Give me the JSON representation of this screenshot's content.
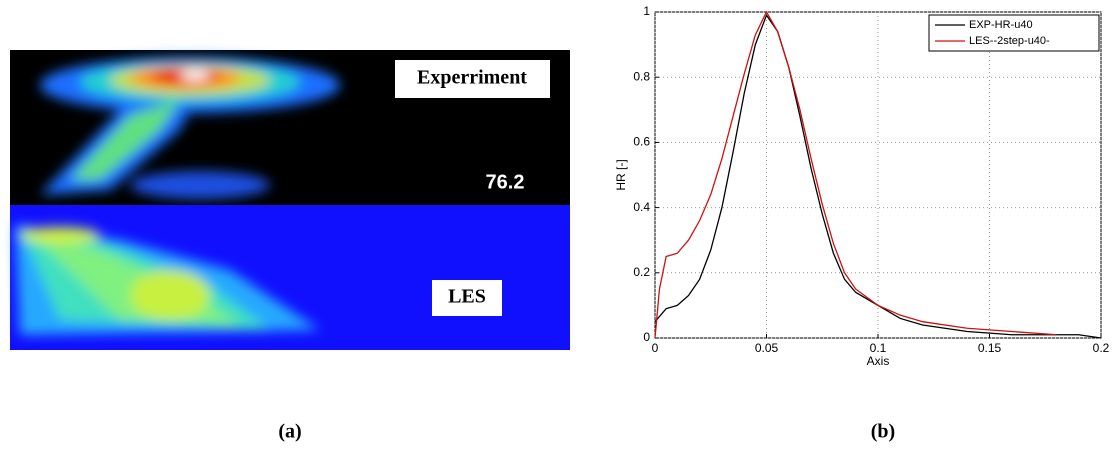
{
  "panel_a": {
    "labels": [
      "Experriment",
      "76.2",
      "LES"
    ],
    "caption": "(a)"
  },
  "chart_data": {
    "type": "line",
    "caption": "(b)",
    "xlabel": "Axis",
    "ylabel": "HR [-]",
    "xlim": [
      0,
      0.2
    ],
    "xticks": [
      0,
      0.05,
      0.1,
      0.15,
      0.2
    ],
    "ylim": [
      0,
      1
    ],
    "yticks": [
      0,
      0.2,
      0.4,
      0.6,
      0.8,
      1
    ],
    "grid": true,
    "legend": "upper right",
    "series": [
      {
        "name": "EXP-HR-u40",
        "color": "#000000",
        "x": [
          0,
          0.005,
          0.01,
          0.015,
          0.02,
          0.025,
          0.03,
          0.035,
          0.04,
          0.045,
          0.05,
          0.055,
          0.06,
          0.065,
          0.07,
          0.075,
          0.08,
          0.085,
          0.09,
          0.1,
          0.11,
          0.12,
          0.14,
          0.16,
          0.18,
          0.19,
          0.2
        ],
        "values": [
          0.05,
          0.09,
          0.1,
          0.13,
          0.18,
          0.27,
          0.4,
          0.57,
          0.75,
          0.9,
          0.99,
          0.94,
          0.83,
          0.68,
          0.52,
          0.38,
          0.26,
          0.18,
          0.14,
          0.1,
          0.06,
          0.04,
          0.02,
          0.01,
          0.01,
          0.01,
          0
        ]
      },
      {
        "name": "LES--2step-u40-",
        "color": "#d01010",
        "x": [
          0,
          0.002,
          0.005,
          0.01,
          0.015,
          0.02,
          0.025,
          0.03,
          0.035,
          0.04,
          0.045,
          0.05,
          0.055,
          0.06,
          0.065,
          0.07,
          0.075,
          0.08,
          0.085,
          0.09,
          0.1,
          0.11,
          0.12,
          0.14,
          0.16,
          0.18
        ],
        "values": [
          0,
          0.15,
          0.25,
          0.26,
          0.3,
          0.36,
          0.44,
          0.55,
          0.68,
          0.81,
          0.93,
          1,
          0.94,
          0.83,
          0.7,
          0.55,
          0.41,
          0.29,
          0.2,
          0.15,
          0.1,
          0.07,
          0.05,
          0.03,
          0.02,
          0.01
        ]
      }
    ]
  }
}
